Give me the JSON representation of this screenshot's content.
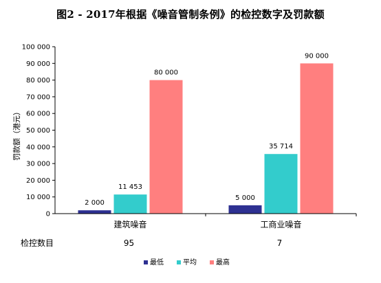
{
  "chart_data": {
    "type": "bar",
    "title": "图2 - 2017年根据《噪音管制条例》的检控数字及罚款额",
    "xlabel": "",
    "ylabel": "罚款额（港元）",
    "categories": [
      "建筑噪音",
      "工商业噪音"
    ],
    "series": [
      {
        "name": "最低",
        "values": [
          2000,
          5000
        ],
        "labels": [
          "2 000",
          "5 000"
        ],
        "color": "#2e3192"
      },
      {
        "name": "平均",
        "values": [
          11453,
          35714
        ],
        "labels": [
          "11 453",
          "35 714"
        ],
        "color": "#33cccc"
      },
      {
        "name": "最高",
        "values": [
          80000,
          90000
        ],
        "labels": [
          "80 000",
          "90 000"
        ],
        "color": "#ff7f7f"
      }
    ],
    "ylim": [
      0,
      100000
    ],
    "yticks": [
      0,
      10000,
      20000,
      30000,
      40000,
      50000,
      60000,
      70000,
      80000,
      90000,
      100000
    ],
    "ytick_labels": [
      "0",
      "10 000",
      "20 000",
      "30 000",
      "40 000",
      "50 000",
      "60 000",
      "70 000",
      "80 000",
      "90 000",
      "100 000"
    ],
    "grid": false,
    "legend": "bottom",
    "extra_row": {
      "label": "检控数目",
      "values": [
        "95",
        "7"
      ]
    }
  }
}
